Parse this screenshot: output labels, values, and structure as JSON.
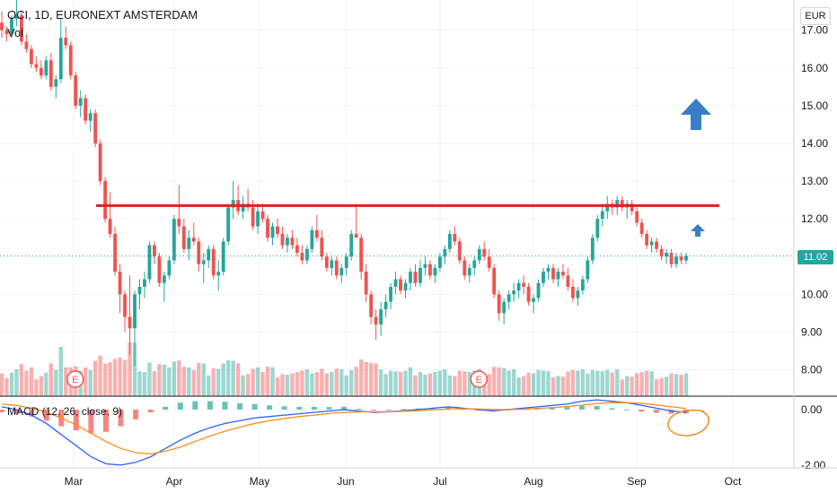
{
  "header": {
    "title": "OCI, 1D, EURONEXT AMSTERDAM",
    "volume_label": "Vol",
    "macd_label": "MACD (12, 26, close, 9)"
  },
  "currency_badge": "EUR",
  "last_price_label": "11.02",
  "colors": {
    "up": "#26a69a",
    "down": "#ef5350",
    "resistance": "#e02020",
    "arrow": "#3a7fc6",
    "macd_line": "#2962ff",
    "signal_line": "#ff8c1a"
  },
  "chart_data": {
    "type": "candlestick",
    "title": "OCI, 1D, EURONEXT AMSTERDAM",
    "x_tick_labels": [
      "Mar",
      "Apr",
      "May",
      "Jun",
      "Jul",
      "Aug",
      "Sep",
      "Oct"
    ],
    "price_axis": {
      "ticks": [
        "17.00",
        "16.00",
        "15.00",
        "14.00",
        "13.00",
        "12.00",
        "11.00",
        "10.00",
        "9.00",
        "8.00"
      ],
      "range": [
        7.3,
        17.8
      ]
    },
    "macd_axis": {
      "ticks": [
        "0.00",
        "-2.00"
      ],
      "range": [
        -2.1,
        0.45
      ]
    },
    "last_price": 11.02,
    "resistance_level": 12.35,
    "earnings_markers": [
      {
        "index": 14,
        "label": "E"
      },
      {
        "index": 96,
        "label": "E"
      },
      {
        "index": 172,
        "label": "E"
      }
    ],
    "annotations": [
      "large up arrow",
      "small up arrow",
      "circled MACD crossover"
    ],
    "series": [
      {
        "name": "price",
        "ohlc": [
          [
            17.2,
            17.5,
            16.8,
            17.0
          ],
          [
            17.0,
            17.1,
            16.7,
            16.9
          ],
          [
            16.9,
            17.4,
            16.8,
            17.3
          ],
          [
            17.3,
            17.8,
            17.1,
            17.4
          ],
          [
            17.4,
            17.5,
            16.6,
            16.7
          ],
          [
            16.7,
            16.9,
            16.4,
            16.5
          ],
          [
            16.5,
            16.6,
            16.0,
            16.1
          ],
          [
            16.1,
            16.3,
            15.9,
            16.0
          ],
          [
            16.0,
            16.2,
            15.7,
            15.8
          ],
          [
            15.8,
            16.3,
            15.7,
            16.2
          ],
          [
            16.2,
            16.4,
            15.4,
            15.5
          ],
          [
            15.5,
            15.8,
            15.2,
            15.7
          ],
          [
            15.7,
            17.3,
            15.6,
            16.8
          ],
          [
            16.8,
            17.1,
            16.5,
            16.6
          ],
          [
            16.6,
            16.7,
            15.7,
            15.8
          ],
          [
            15.8,
            15.9,
            14.9,
            15.0
          ],
          [
            15.0,
            15.4,
            14.7,
            15.2
          ],
          [
            15.2,
            15.3,
            14.5,
            14.6
          ],
          [
            14.6,
            14.9,
            14.3,
            14.8
          ],
          [
            14.8,
            14.9,
            13.9,
            14.0
          ],
          [
            14.0,
            14.1,
            12.9,
            13.0
          ],
          [
            13.0,
            13.1,
            11.9,
            12.0
          ],
          [
            12.0,
            12.7,
            11.5,
            11.6
          ],
          [
            11.6,
            11.8,
            10.5,
            10.6
          ],
          [
            10.6,
            10.8,
            9.5,
            10.0
          ],
          [
            10.0,
            10.1,
            9.0,
            9.4
          ],
          [
            9.4,
            10.5,
            8.4,
            9.1
          ],
          [
            9.1,
            10.1,
            8.1,
            10.0
          ],
          [
            10.0,
            10.4,
            9.6,
            10.2
          ],
          [
            10.2,
            10.6,
            9.9,
            10.4
          ],
          [
            10.4,
            11.4,
            10.3,
            11.3
          ],
          [
            11.3,
            11.4,
            10.8,
            11.0
          ],
          [
            11.0,
            11.1,
            10.2,
            10.3
          ],
          [
            10.3,
            10.6,
            9.8,
            10.5
          ],
          [
            10.5,
            11.0,
            10.4,
            10.9
          ],
          [
            10.9,
            12.1,
            10.8,
            12.0
          ],
          [
            12.0,
            12.9,
            11.6,
            11.8
          ],
          [
            11.8,
            12.0,
            11.1,
            11.2
          ],
          [
            11.2,
            11.7,
            10.9,
            11.5
          ],
          [
            11.5,
            11.9,
            11.3,
            11.4
          ],
          [
            11.4,
            11.5,
            10.6,
            10.8
          ],
          [
            10.8,
            11.1,
            10.3,
            10.9
          ],
          [
            10.9,
            11.3,
            10.7,
            11.2
          ],
          [
            11.2,
            11.3,
            10.4,
            10.5
          ],
          [
            10.5,
            10.9,
            10.1,
            10.6
          ],
          [
            10.6,
            11.5,
            10.5,
            11.4
          ],
          [
            11.4,
            12.4,
            11.3,
            12.3
          ],
          [
            12.3,
            13.0,
            12.0,
            12.5
          ],
          [
            12.5,
            12.9,
            12.1,
            12.2
          ],
          [
            12.2,
            12.6,
            12.0,
            12.4
          ],
          [
            12.4,
            12.8,
            12.2,
            12.3
          ],
          [
            12.3,
            12.5,
            11.7,
            11.8
          ],
          [
            11.8,
            12.4,
            11.6,
            12.2
          ],
          [
            12.2,
            12.4,
            11.9,
            12.0
          ],
          [
            12.0,
            12.1,
            11.4,
            11.5
          ],
          [
            11.5,
            11.9,
            11.3,
            11.8
          ],
          [
            11.8,
            12.0,
            11.5,
            11.6
          ],
          [
            11.6,
            11.8,
            11.2,
            11.3
          ],
          [
            11.3,
            11.6,
            11.1,
            11.5
          ],
          [
            11.5,
            11.7,
            11.2,
            11.3
          ],
          [
            11.3,
            11.5,
            11.0,
            11.1
          ],
          [
            11.1,
            11.3,
            10.8,
            10.9
          ],
          [
            10.9,
            11.3,
            10.8,
            11.2
          ],
          [
            11.2,
            11.8,
            11.1,
            11.7
          ],
          [
            11.7,
            12.1,
            11.4,
            11.5
          ],
          [
            11.5,
            11.7,
            10.9,
            11.0
          ],
          [
            11.0,
            11.1,
            10.6,
            10.7
          ],
          [
            10.7,
            11.0,
            10.5,
            10.9
          ],
          [
            10.9,
            11.0,
            10.4,
            10.5
          ],
          [
            10.5,
            10.8,
            10.3,
            10.7
          ],
          [
            10.7,
            11.1,
            10.5,
            11.0
          ],
          [
            11.0,
            11.7,
            10.9,
            11.6
          ],
          [
            11.6,
            12.4,
            11.5,
            11.5
          ],
          [
            11.5,
            11.6,
            10.4,
            10.6
          ],
          [
            10.6,
            10.8,
            9.8,
            10.0
          ],
          [
            10.0,
            10.1,
            9.2,
            9.4
          ],
          [
            9.4,
            9.6,
            8.8,
            9.2
          ],
          [
            9.2,
            9.8,
            8.9,
            9.6
          ],
          [
            9.6,
            10.0,
            9.4,
            9.8
          ],
          [
            9.8,
            10.3,
            9.6,
            10.2
          ],
          [
            10.2,
            10.6,
            10.0,
            10.4
          ],
          [
            10.4,
            10.5,
            10.0,
            10.1
          ],
          [
            10.1,
            10.4,
            9.9,
            10.3
          ],
          [
            10.3,
            10.7,
            10.1,
            10.6
          ],
          [
            10.6,
            10.8,
            10.2,
            10.3
          ],
          [
            10.3,
            10.9,
            10.2,
            10.7
          ],
          [
            10.7,
            11.0,
            10.5,
            10.8
          ],
          [
            10.8,
            10.9,
            10.4,
            10.5
          ],
          [
            10.5,
            10.8,
            10.3,
            10.7
          ],
          [
            10.7,
            11.1,
            10.6,
            11.0
          ],
          [
            11.0,
            11.3,
            10.8,
            11.2
          ],
          [
            11.2,
            11.7,
            11.1,
            11.6
          ],
          [
            11.6,
            11.8,
            11.3,
            11.4
          ],
          [
            11.4,
            11.5,
            10.8,
            10.9
          ],
          [
            10.9,
            11.0,
            10.4,
            10.5
          ],
          [
            10.5,
            10.8,
            10.3,
            10.7
          ],
          [
            10.7,
            11.0,
            10.5,
            10.9
          ],
          [
            10.9,
            11.3,
            10.8,
            11.2
          ],
          [
            11.2,
            11.4,
            10.9,
            11.0
          ],
          [
            11.0,
            11.2,
            10.6,
            10.7
          ],
          [
            10.7,
            10.8,
            9.9,
            10.0
          ],
          [
            10.0,
            10.1,
            9.3,
            9.5
          ],
          [
            9.5,
            9.9,
            9.2,
            9.8
          ],
          [
            9.8,
            10.1,
            9.6,
            10.0
          ],
          [
            10.0,
            10.3,
            9.8,
            10.1
          ],
          [
            10.1,
            10.4,
            9.9,
            10.3
          ],
          [
            10.3,
            10.5,
            10.0,
            10.2
          ],
          [
            10.2,
            10.3,
            9.7,
            9.8
          ],
          [
            9.8,
            10.0,
            9.5,
            9.9
          ],
          [
            9.9,
            10.4,
            9.8,
            10.3
          ],
          [
            10.3,
            10.7,
            10.2,
            10.6
          ],
          [
            10.6,
            10.8,
            10.4,
            10.7
          ],
          [
            10.7,
            10.8,
            10.3,
            10.4
          ],
          [
            10.4,
            10.7,
            10.2,
            10.6
          ],
          [
            10.6,
            10.8,
            10.4,
            10.5
          ],
          [
            10.5,
            10.7,
            10.1,
            10.2
          ],
          [
            10.2,
            10.4,
            9.8,
            9.9
          ],
          [
            9.9,
            10.2,
            9.7,
            10.1
          ],
          [
            10.1,
            10.5,
            10.0,
            10.4
          ],
          [
            10.4,
            11.0,
            10.3,
            10.9
          ],
          [
            10.9,
            11.6,
            10.8,
            11.5
          ],
          [
            11.5,
            12.1,
            11.4,
            12.0
          ],
          [
            12.0,
            12.4,
            11.8,
            12.2
          ],
          [
            12.2,
            12.6,
            12.0,
            12.4
          ],
          [
            12.4,
            12.5,
            12.1,
            12.3
          ],
          [
            12.3,
            12.6,
            12.1,
            12.5
          ],
          [
            12.5,
            12.6,
            12.2,
            12.3
          ],
          [
            12.3,
            12.5,
            12.0,
            12.4
          ],
          [
            12.4,
            12.5,
            12.1,
            12.2
          ],
          [
            12.2,
            12.3,
            11.8,
            11.9
          ],
          [
            11.9,
            12.0,
            11.5,
            11.6
          ],
          [
            11.6,
            11.7,
            11.2,
            11.3
          ],
          [
            11.3,
            11.5,
            11.1,
            11.4
          ],
          [
            11.4,
            11.5,
            11.1,
            11.2
          ],
          [
            11.2,
            11.3,
            10.9,
            11.0
          ],
          [
            11.0,
            11.2,
            10.8,
            11.1
          ],
          [
            11.1,
            11.2,
            10.7,
            10.8
          ],
          [
            10.8,
            11.1,
            10.7,
            11.0
          ],
          [
            11.0,
            11.1,
            10.8,
            10.9
          ],
          [
            10.9,
            11.1,
            10.8,
            11.02
          ]
        ]
      }
    ],
    "macd": {
      "macd_line": [
        0.1,
        0.0,
        -0.2,
        -0.5,
        -0.9,
        -1.3,
        -1.7,
        -1.95,
        -2.0,
        -1.9,
        -1.7,
        -1.4,
        -1.1,
        -0.85,
        -0.65,
        -0.5,
        -0.4,
        -0.3,
        -0.25,
        -0.2,
        -0.15,
        -0.1,
        -0.05,
        0.0,
        -0.05,
        -0.1,
        -0.08,
        -0.04,
        0.0,
        0.05,
        0.1,
        0.05,
        0.0,
        -0.05,
        0.0,
        0.05,
        0.1,
        0.15,
        0.2,
        0.3,
        0.35,
        0.3,
        0.25,
        0.15,
        0.05,
        -0.05,
        -0.1
      ],
      "signal_line": [
        0.2,
        0.15,
        0.05,
        -0.1,
        -0.3,
        -0.55,
        -0.85,
        -1.15,
        -1.4,
        -1.55,
        -1.6,
        -1.5,
        -1.35,
        -1.15,
        -0.95,
        -0.78,
        -0.63,
        -0.5,
        -0.4,
        -0.32,
        -0.25,
        -0.2,
        -0.14,
        -0.1,
        -0.08,
        -0.08,
        -0.08,
        -0.06,
        -0.04,
        -0.01,
        0.02,
        0.03,
        0.02,
        0.0,
        0.0,
        0.01,
        0.04,
        0.07,
        0.11,
        0.16,
        0.22,
        0.25,
        0.25,
        0.22,
        0.17,
        0.1,
        0.04
      ]
    }
  }
}
